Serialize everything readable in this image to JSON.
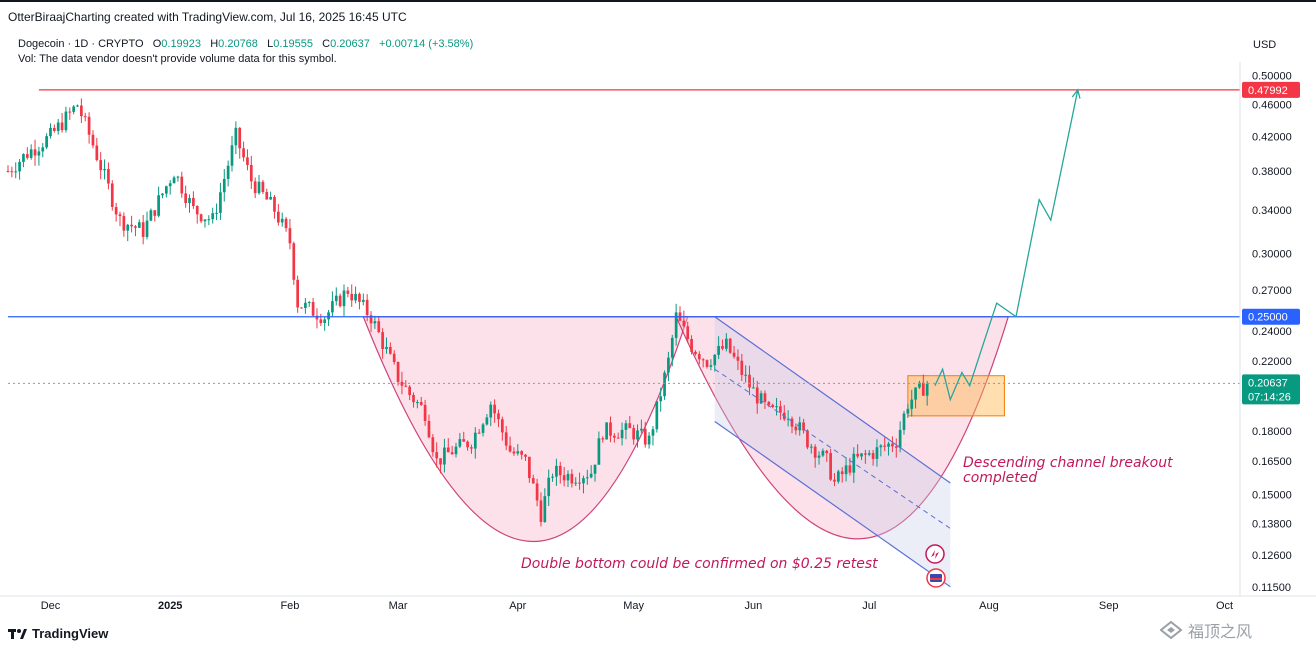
{
  "header": {
    "attribution": "OtterBiraajCharting created with TradingView.com, Jul 16, 2025 16:45 UTC"
  },
  "legend": {
    "symbol": "Dogecoin · 1D · CRYPTO",
    "o_label": "O",
    "o_value": "0.19923",
    "h_label": "H",
    "h_value": "0.20768",
    "l_label": "L",
    "l_value": "0.19555",
    "c_label": "C",
    "c_value": "0.20637",
    "change": "+0.00714 (+3.58%)",
    "volume_note": "Vol: The data vendor doesn't provide volume data for this symbol."
  },
  "price_axis": {
    "currency": "USD",
    "labels": [
      "0.50000",
      "0.46000",
      "0.42000",
      "0.38000",
      "0.34000",
      "0.30000",
      "0.27000",
      "0.24000",
      "0.22000",
      "0.18000",
      "0.16500",
      "0.15000",
      "0.13800",
      "0.12600",
      "0.11500"
    ]
  },
  "time_axis": {
    "labels": [
      "Dec",
      "2025",
      "Feb",
      "Mar",
      "Apr",
      "May",
      "Jun",
      "Jul",
      "Aug",
      "Sep",
      "Oct"
    ]
  },
  "badges": {
    "high_level": "0.47992",
    "neckline": "0.25000",
    "last_price": "0.20637",
    "countdown": "07:14:26"
  },
  "annotations": {
    "double_bottom": "Double bottom could be confirmed on $0.25 retest",
    "breakout_line1": "Descending channel breakout",
    "breakout_line2": "completed"
  },
  "footer": {
    "brand": "TradingView",
    "watermark": "福顶之风"
  },
  "colors": {
    "up": "#089981",
    "down": "#f23645",
    "neckline": "#2962ff",
    "resistance": "#f23645",
    "projection": "#26a69a",
    "cup_fill": "#f8bbd0",
    "channel": "#5b6fd6",
    "target_box": "#ffb74d",
    "annotation_text": "#c2185b"
  },
  "chart_data": {
    "type": "candlestick",
    "title": "Dogecoin · 1D · CRYPTO",
    "y_scale": "log",
    "ylim": [
      0.112,
      0.52
    ],
    "x_range": [
      "2024-11-20",
      "2025-10-05"
    ],
    "yticks": [
      0.5,
      0.46,
      0.42,
      0.38,
      0.34,
      0.3,
      0.27,
      0.24,
      0.22,
      0.18,
      0.165,
      0.15,
      0.138,
      0.126,
      0.115
    ],
    "xticks": [
      {
        "label": "Dec",
        "date": "2024-12-01"
      },
      {
        "label": "2025",
        "date": "2025-01-01"
      },
      {
        "label": "Feb",
        "date": "2025-02-01"
      },
      {
        "label": "Mar",
        "date": "2025-03-01"
      },
      {
        "label": "Apr",
        "date": "2025-04-01"
      },
      {
        "label": "May",
        "date": "2025-05-01"
      },
      {
        "label": "Jun",
        "date": "2025-06-01"
      },
      {
        "label": "Jul",
        "date": "2025-07-01"
      },
      {
        "label": "Aug",
        "date": "2025-08-01"
      },
      {
        "label": "Sep",
        "date": "2025-09-01"
      },
      {
        "label": "Oct",
        "date": "2025-10-01"
      }
    ],
    "price_path": [
      [
        "2024-11-20",
        0.38
      ],
      [
        "2024-11-25",
        0.4
      ],
      [
        "2024-12-01",
        0.42
      ],
      [
        "2024-12-08",
        0.46
      ],
      [
        "2024-12-12",
        0.41
      ],
      [
        "2024-12-19",
        0.33
      ],
      [
        "2024-12-25",
        0.32
      ],
      [
        "2025-01-02",
        0.38
      ],
      [
        "2025-01-07",
        0.34
      ],
      [
        "2025-01-12",
        0.33
      ],
      [
        "2025-01-18",
        0.42
      ],
      [
        "2025-01-22",
        0.37
      ],
      [
        "2025-01-28",
        0.34
      ],
      [
        "2025-02-01",
        0.31
      ],
      [
        "2025-02-03",
        0.26
      ],
      [
        "2025-02-10",
        0.25
      ],
      [
        "2025-02-16",
        0.27
      ],
      [
        "2025-02-22",
        0.25
      ],
      [
        "2025-03-01",
        0.21
      ],
      [
        "2025-03-04",
        0.2
      ],
      [
        "2025-03-08",
        0.19
      ],
      [
        "2025-03-11",
        0.165
      ],
      [
        "2025-03-15",
        0.17
      ],
      [
        "2025-03-20",
        0.175
      ],
      [
        "2025-03-25",
        0.195
      ],
      [
        "2025-03-30",
        0.17
      ],
      [
        "2025-04-03",
        0.165
      ],
      [
        "2025-04-07",
        0.142
      ],
      [
        "2025-04-10",
        0.16
      ],
      [
        "2025-04-15",
        0.158
      ],
      [
        "2025-04-20",
        0.16
      ],
      [
        "2025-04-23",
        0.18
      ],
      [
        "2025-04-30",
        0.18
      ],
      [
        "2025-05-05",
        0.175
      ],
      [
        "2025-05-10",
        0.22
      ],
      [
        "2025-05-12",
        0.25
      ],
      [
        "2025-05-16",
        0.23
      ],
      [
        "2025-05-20",
        0.22
      ],
      [
        "2025-05-25",
        0.23
      ],
      [
        "2025-05-31",
        0.205
      ],
      [
        "2025-06-05",
        0.19
      ],
      [
        "2025-06-10",
        0.19
      ],
      [
        "2025-06-15",
        0.175
      ],
      [
        "2025-06-20",
        0.165
      ],
      [
        "2025-06-22",
        0.155
      ],
      [
        "2025-06-27",
        0.165
      ],
      [
        "2025-07-03",
        0.17
      ],
      [
        "2025-07-08",
        0.175
      ],
      [
        "2025-07-11",
        0.195
      ],
      [
        "2025-07-14",
        0.202
      ],
      [
        "2025-07-16",
        0.2064
      ]
    ],
    "last": {
      "date": "2025-07-16",
      "open": 0.19923,
      "high": 0.20768,
      "low": 0.19555,
      "close": 0.20637,
      "change": 0.00714,
      "change_pct": 3.58
    },
    "horizontal_levels": [
      {
        "price": 0.47992,
        "from": "2024-11-28",
        "color": "#f23645"
      },
      {
        "price": 0.25,
        "from": "2024-11-20",
        "color": "#2962ff"
      },
      {
        "price": 0.20637,
        "from": "2024-11-20",
        "color": "#9598a1",
        "style": "dotted"
      }
    ],
    "projection_path": [
      [
        "2025-07-18",
        0.205
      ],
      [
        "2025-07-20",
        0.215
      ],
      [
        "2025-07-22",
        0.197
      ],
      [
        "2025-07-25",
        0.213
      ],
      [
        "2025-07-27",
        0.205
      ],
      [
        "2025-07-30",
        0.227
      ],
      [
        "2025-08-03",
        0.26
      ],
      [
        "2025-08-08",
        0.25
      ],
      [
        "2025-08-14",
        0.35
      ],
      [
        "2025-08-17",
        0.33
      ],
      [
        "2025-08-24",
        0.47992
      ]
    ],
    "cups": [
      {
        "start": [
          "2025-02-20",
          0.25
        ],
        "bottom": [
          "2025-04-05",
          0.131
        ],
        "end": [
          "2025-05-15",
          0.25
        ]
      },
      {
        "start": [
          "2025-05-12",
          0.25
        ],
        "bottom": [
          "2025-06-28",
          0.132
        ],
        "end": [
          "2025-08-06",
          0.25
        ]
      }
    ],
    "descending_channel": {
      "upper": [
        [
          "2025-05-22",
          0.25
        ],
        [
          "2025-07-22",
          0.155
        ]
      ],
      "lower": [
        [
          "2025-05-22",
          0.185
        ],
        [
          "2025-07-22",
          0.115
        ]
      ],
      "mid": [
        [
          "2025-05-22",
          0.215
        ],
        [
          "2025-07-22",
          0.136
        ]
      ]
    },
    "target_box": {
      "from": "2025-07-11",
      "to": "2025-08-05",
      "low": 0.188,
      "high": 0.211
    }
  }
}
